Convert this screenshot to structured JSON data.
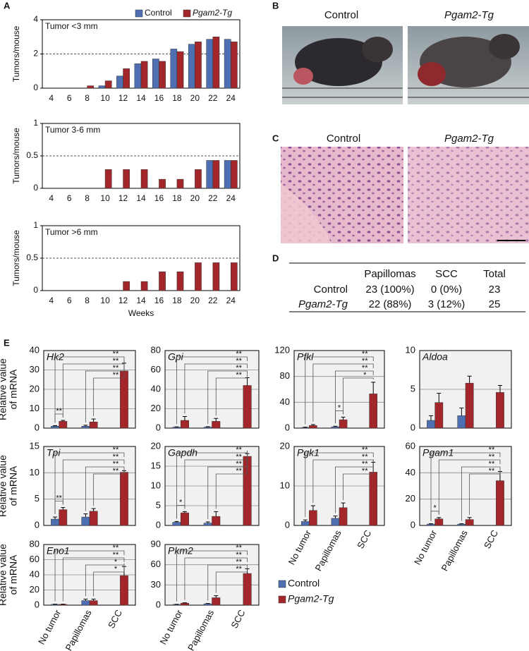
{
  "panel_labels": [
    "A",
    "B",
    "C",
    "D",
    "E"
  ],
  "photos": {
    "B": [
      "Control",
      "Pgam2-Tg"
    ],
    "C": [
      "Control",
      "Pgam2-Tg"
    ]
  },
  "table": {
    "header": [
      "Papillomas",
      "SCC",
      "Total"
    ],
    "rows": [
      [
        "Control",
        "23 (100%)",
        "0 (0%)",
        "23"
      ],
      [
        "Pgam2-Tg",
        "22 (88%)",
        "3 (12%)",
        "25"
      ]
    ]
  },
  "chart_data": [
    {
      "type": "bar",
      "title": "Tumor <3 mm",
      "ylabel": [
        "Tumors/mouse"
      ],
      "categories": [
        4,
        6,
        8,
        10,
        12,
        14,
        16,
        18,
        20,
        22,
        24
      ],
      "series": [
        {
          "name": "Control",
          "color": "#4f6fb3",
          "values": [
            0,
            0,
            0,
            0.14,
            0.71,
            1.43,
            1.71,
            2.29,
            2.57,
            2.86,
            2.86
          ]
        },
        {
          "name": "Pgam2-Tg",
          "color": "#a3262a",
          "values": [
            0,
            0,
            0.14,
            0.43,
            1.14,
            1.57,
            1.57,
            2.14,
            2.71,
            3.0,
            2.71
          ]
        }
      ],
      "ylim": [
        0,
        4
      ],
      "yticks": [
        0,
        2,
        4
      ],
      "refline": 2,
      "legend": "top-right",
      "grid": false
    },
    {
      "type": "bar",
      "title": "Tumor 3-6 mm",
      "ylabel": [
        "Tumors/mouse"
      ],
      "categories": [
        4,
        6,
        8,
        10,
        12,
        14,
        16,
        18,
        20,
        22,
        24
      ],
      "series": [
        {
          "color": "#4f6fb3",
          "values": [
            0,
            0,
            0,
            0,
            0,
            0,
            0,
            0,
            0,
            0.43,
            0.43
          ]
        },
        {
          "color": "#a3262a",
          "values": [
            0,
            0,
            0,
            0.29,
            0.29,
            0.29,
            0.14,
            0.14,
            0.29,
            0.43,
            0.43
          ]
        }
      ],
      "ylim": [
        0,
        1
      ],
      "yticks": [
        0,
        0.5,
        1
      ],
      "refline": 0.5,
      "grid": false
    },
    {
      "type": "bar",
      "title": "Tumor >6 mm",
      "ylabel": [
        "Tumors/mouse"
      ],
      "xlabel": "Weeks",
      "categories": [
        4,
        6,
        8,
        10,
        12,
        14,
        16,
        18,
        20,
        22,
        24
      ],
      "series": [
        {
          "color": "#4f6fb3",
          "values": [
            0,
            0,
            0,
            0,
            0,
            0,
            0,
            0,
            0,
            0,
            0
          ]
        },
        {
          "color": "#a3262a",
          "values": [
            0,
            0,
            0,
            0,
            0.14,
            0.14,
            0.29,
            0.29,
            0.43,
            0.43,
            0.43
          ]
        }
      ],
      "ylim": [
        0,
        1
      ],
      "yticks": [
        0,
        0.5,
        1
      ],
      "refline": 0.5,
      "grid": false
    },
    {
      "type": "bar",
      "title": "Hk2",
      "ylabel": [
        "Relative value",
        "of mRNA"
      ],
      "categories": [
        null,
        null,
        null
      ],
      "series": [
        {
          "name": "Control",
          "color": "#4f6fb3",
          "values": [
            1,
            1,
            null
          ],
          "errors": [
            0.3,
            0.5,
            null
          ]
        },
        {
          "name": "Pgam2-Tg",
          "color": "#a3262a",
          "values": [
            3.5,
            3.2,
            29.5
          ],
          "errors": [
            0.5,
            1.5,
            4
          ]
        }
      ],
      "ylim": [
        0,
        40
      ],
      "yticks": [
        0,
        10,
        20,
        30,
        40
      ],
      "grid": true,
      "legend": "below",
      "significance": [
        {
          "label": "**",
          "bars": [
            0,
            5
          ]
        },
        {
          "label": "**",
          "bars": [
            1,
            5
          ]
        },
        {
          "label": "**",
          "bars": [
            2,
            5
          ]
        },
        {
          "label": "**",
          "bars": [
            3,
            5
          ]
        },
        {
          "label": "**",
          "bars": [
            0,
            1
          ]
        }
      ]
    },
    {
      "type": "bar",
      "title": "Gpi",
      "categories": [
        null,
        null,
        null
      ],
      "series": [
        {
          "color": "#4f6fb3",
          "values": [
            1,
            1,
            null
          ],
          "errors": [
            0.3,
            0.5,
            null
          ]
        },
        {
          "color": "#a3262a",
          "values": [
            8,
            7,
            44
          ],
          "errors": [
            4,
            3,
            8
          ]
        }
      ],
      "ylim": [
        0,
        80
      ],
      "yticks": [
        0,
        20,
        40,
        60,
        80
      ],
      "grid": true,
      "significance": [
        {
          "label": "**",
          "bars": [
            0,
            5
          ]
        },
        {
          "label": "**",
          "bars": [
            1,
            5
          ]
        },
        {
          "label": "**",
          "bars": [
            2,
            5
          ]
        },
        {
          "label": "**",
          "bars": [
            3,
            5
          ]
        }
      ]
    },
    {
      "type": "bar",
      "title": "Pfkl",
      "categories": [
        null,
        null,
        null
      ],
      "series": [
        {
          "color": "#4f6fb3",
          "values": [
            1,
            2,
            null
          ],
          "errors": [
            0.5,
            1,
            null
          ]
        },
        {
          "color": "#a3262a",
          "values": [
            4,
            13,
            53
          ],
          "errors": [
            1.5,
            4,
            18
          ]
        }
      ],
      "ylim": [
        0,
        120
      ],
      "yticks": [
        0,
        40,
        80,
        120
      ],
      "grid": true,
      "significance": [
        {
          "label": "**",
          "bars": [
            0,
            5
          ]
        },
        {
          "label": "**",
          "bars": [
            1,
            5
          ]
        },
        {
          "label": "**",
          "bars": [
            2,
            5
          ]
        },
        {
          "label": "*",
          "bars": [
            3,
            5
          ]
        },
        {
          "label": "*",
          "bars": [
            2,
            3
          ]
        }
      ]
    },
    {
      "type": "bar",
      "title": "Aldoa",
      "categories": [
        null,
        null,
        null
      ],
      "series": [
        {
          "color": "#4f6fb3",
          "values": [
            1,
            1.6,
            null
          ],
          "errors": [
            0.6,
            1,
            null
          ]
        },
        {
          "color": "#a3262a",
          "values": [
            3.3,
            5.8,
            4.6
          ],
          "errors": [
            1.2,
            0.9,
            0.9
          ]
        }
      ],
      "ylim": [
        0,
        10
      ],
      "yticks": [
        0,
        5,
        10
      ],
      "grid": true
    },
    {
      "type": "bar",
      "title": "Tpi",
      "ylabel": [
        "Relative value",
        "of mRNA"
      ],
      "categories": [
        null,
        null,
        null
      ],
      "series": [
        {
          "color": "#4f6fb3",
          "values": [
            1.2,
            1.6,
            null
          ],
          "errors": [
            0.4,
            0.6,
            null
          ]
        },
        {
          "color": "#a3262a",
          "values": [
            3,
            2.7,
            10.1
          ],
          "errors": [
            0.4,
            0.5,
            0.3
          ]
        }
      ],
      "ylim": [
        0,
        15
      ],
      "yticks": [
        0,
        5,
        10,
        15
      ],
      "grid": true,
      "significance": [
        {
          "label": "**",
          "bars": [
            0,
            5
          ]
        },
        {
          "label": "**",
          "bars": [
            1,
            5
          ]
        },
        {
          "label": "**",
          "bars": [
            2,
            5
          ]
        },
        {
          "label": "**",
          "bars": [
            3,
            5
          ]
        },
        {
          "label": "**",
          "bars": [
            0,
            1
          ]
        }
      ]
    },
    {
      "type": "bar",
      "title": "Gapdh",
      "categories": [
        null,
        null,
        null
      ],
      "series": [
        {
          "color": "#4f6fb3",
          "values": [
            0.8,
            0.6,
            null
          ],
          "errors": [
            0.2,
            0.3,
            null
          ]
        },
        {
          "color": "#a3262a",
          "values": [
            3.2,
            2.3,
            17.5
          ],
          "errors": [
            0.3,
            1.2,
            0.7
          ]
        }
      ],
      "ylim": [
        0,
        20
      ],
      "yticks": [
        0,
        5,
        10,
        15,
        20
      ],
      "grid": true,
      "significance": [
        {
          "label": "**",
          "bars": [
            0,
            5
          ]
        },
        {
          "label": "**",
          "bars": [
            1,
            5
          ]
        },
        {
          "label": "**",
          "bars": [
            2,
            5
          ]
        },
        {
          "label": "**",
          "bars": [
            3,
            5
          ]
        },
        {
          "label": "*",
          "bars": [
            0,
            1
          ]
        }
      ]
    },
    {
      "type": "bar",
      "title": "Pgk1",
      "categories": [
        "No tumor",
        "Papillomas",
        "SCC"
      ],
      "series": [
        {
          "color": "#4f6fb3",
          "values": [
            1,
            1.8,
            null
          ],
          "errors": [
            0.4,
            0.6,
            null
          ]
        },
        {
          "color": "#a3262a",
          "values": [
            3.8,
            4.5,
            13.5
          ],
          "errors": [
            1.2,
            1.2,
            2.5
          ]
        }
      ],
      "ylim": [
        0,
        20
      ],
      "yticks": [
        0,
        10,
        20
      ],
      "grid": true,
      "significance": [
        {
          "label": "**",
          "bars": [
            0,
            5
          ]
        },
        {
          "label": "**",
          "bars": [
            1,
            5
          ]
        },
        {
          "label": "**",
          "bars": [
            2,
            5
          ]
        },
        {
          "label": "**",
          "bars": [
            3,
            5
          ]
        }
      ]
    },
    {
      "type": "bar",
      "title": "Pgam1",
      "categories": [
        "No tumor",
        "Papillomas",
        "SCC"
      ],
      "series": [
        {
          "color": "#4f6fb3",
          "values": [
            1,
            1,
            null
          ],
          "errors": [
            0.3,
            0.3,
            null
          ]
        },
        {
          "color": "#a3262a",
          "values": [
            5,
            4.5,
            34
          ],
          "errors": [
            1,
            1.5,
            7
          ]
        }
      ],
      "ylim": [
        0,
        60
      ],
      "yticks": [
        0,
        20,
        40,
        60
      ],
      "grid": true,
      "significance": [
        {
          "label": "**",
          "bars": [
            0,
            5
          ]
        },
        {
          "label": "**",
          "bars": [
            1,
            5
          ]
        },
        {
          "label": "**",
          "bars": [
            2,
            5
          ]
        },
        {
          "label": "**",
          "bars": [
            3,
            5
          ]
        },
        {
          "label": "*",
          "bars": [
            0,
            1
          ]
        }
      ]
    },
    {
      "type": "bar",
      "title": "Eno1",
      "ylabel": [
        "Relative value",
        "of mRNA"
      ],
      "categories": [
        "No tumor",
        "Papillomas",
        "SCC"
      ],
      "series": [
        {
          "color": "#4f6fb3",
          "values": [
            1,
            6,
            null
          ],
          "errors": [
            0.3,
            2,
            null
          ]
        },
        {
          "color": "#a3262a",
          "values": [
            1,
            6,
            39
          ],
          "errors": [
            0.3,
            2,
            12
          ]
        }
      ],
      "ylim": [
        0,
        80
      ],
      "yticks": [
        0,
        20,
        40,
        60,
        80
      ],
      "grid": true,
      "significance": [
        {
          "label": "**",
          "bars": [
            0,
            5
          ]
        },
        {
          "label": "**",
          "bars": [
            1,
            5
          ]
        },
        {
          "label": "*",
          "bars": [
            2,
            5
          ]
        },
        {
          "label": "*",
          "bars": [
            3,
            5
          ]
        }
      ]
    },
    {
      "type": "bar",
      "title": "Pkm2",
      "categories": [
        "No tumor",
        "Papillomas",
        "SCC"
      ],
      "series": [
        {
          "color": "#4f6fb3",
          "values": [
            1,
            2,
            null
          ],
          "errors": [
            0.3,
            0.5,
            null
          ]
        },
        {
          "color": "#a3262a",
          "values": [
            3,
            11,
            47
          ],
          "errors": [
            0.5,
            3,
            7
          ]
        }
      ],
      "ylim": [
        0,
        90
      ],
      "yticks": [
        0,
        30,
        60,
        90
      ],
      "grid": true,
      "significance": [
        {
          "label": "**",
          "bars": [
            0,
            5
          ]
        },
        {
          "label": "**",
          "bars": [
            1,
            5
          ]
        },
        {
          "label": "**",
          "bars": [
            2,
            5
          ]
        },
        {
          "label": "**",
          "bars": [
            3,
            5
          ]
        }
      ]
    }
  ]
}
